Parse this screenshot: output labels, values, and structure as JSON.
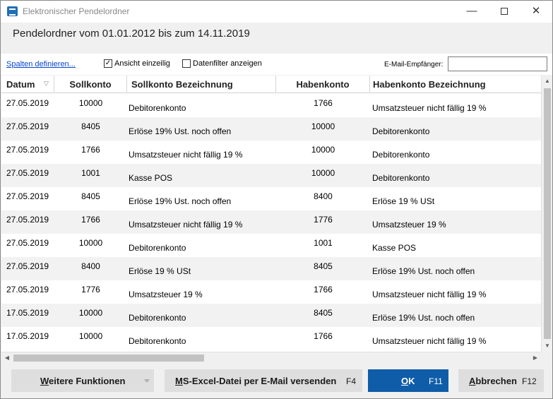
{
  "window": {
    "title": "Elektronischer Pendelordner",
    "controls": {
      "minimize": "—",
      "close": "✕"
    }
  },
  "header": {
    "title": "Pendelordner vom 01.01.2012 bis zum 14.11.2019"
  },
  "toolbar": {
    "columns_link": "Spalten definieren...",
    "single_line_label": "Ansicht einzeilig",
    "single_line_checked": true,
    "filter_label": "Datenfilter anzeigen",
    "filter_checked": false,
    "email_label": "E-Mail-Empfänger:",
    "email_value": ""
  },
  "grid": {
    "columns": {
      "datum": "Datum",
      "soll": "Sollkonto",
      "sollbez": "Sollkonto Bezeichnung",
      "haben": "Habenkonto",
      "habenbez": "Habenkonto Bezeichnung"
    },
    "sort_indicator": "▽",
    "rows": [
      {
        "datum": "27.05.2019",
        "soll": "10000",
        "sollbez": "Debitorenkonto",
        "haben": "1766",
        "habenbez": "Umsatzsteuer nicht fällig 19 %"
      },
      {
        "datum": "27.05.2019",
        "soll": "8405",
        "sollbez": "Erlöse 19% Ust. noch offen",
        "haben": "10000",
        "habenbez": "Debitorenkonto"
      },
      {
        "datum": "27.05.2019",
        "soll": "1766",
        "sollbez": "Umsatzsteuer nicht fällig 19 %",
        "haben": "10000",
        "habenbez": "Debitorenkonto"
      },
      {
        "datum": "27.05.2019",
        "soll": "1001",
        "sollbez": "Kasse POS",
        "haben": "10000",
        "habenbez": "Debitorenkonto"
      },
      {
        "datum": "27.05.2019",
        "soll": "8405",
        "sollbez": "Erlöse 19% Ust. noch offen",
        "haben": "8400",
        "habenbez": "Erlöse 19 % USt"
      },
      {
        "datum": "27.05.2019",
        "soll": "1766",
        "sollbez": "Umsatzsteuer nicht fällig 19 %",
        "haben": "1776",
        "habenbez": "Umsatzsteuer 19 %"
      },
      {
        "datum": "27.05.2019",
        "soll": "10000",
        "sollbez": "Debitorenkonto",
        "haben": "1001",
        "habenbez": "Kasse POS"
      },
      {
        "datum": "27.05.2019",
        "soll": "8400",
        "sollbez": "Erlöse 19 % USt",
        "haben": "8405",
        "habenbez": "Erlöse 19% Ust. noch offen"
      },
      {
        "datum": "27.05.2019",
        "soll": "1776",
        "sollbez": "Umsatzsteuer 19 %",
        "haben": "1766",
        "habenbez": "Umsatzsteuer nicht fällig 19 %"
      },
      {
        "datum": "17.05.2019",
        "soll": "10000",
        "sollbez": "Debitorenkonto",
        "haben": "8405",
        "habenbez": "Erlöse 19% Ust. noch offen"
      },
      {
        "datum": "17.05.2019",
        "soll": "10000",
        "sollbez": "Debitorenkonto",
        "haben": "1766",
        "habenbez": "Umsatzsteuer nicht fällig 19 %"
      }
    ]
  },
  "footer": {
    "weitere": {
      "accel": "W",
      "rest": "eitere Funktionen"
    },
    "excel": {
      "accel": "M",
      "rest": "S-Excel-Datei per E-Mail versenden",
      "key": "F4"
    },
    "ok": {
      "accel": "O",
      "rest": "K",
      "key": "F11"
    },
    "abbrechen": {
      "accel": "A",
      "rest": "bbrechen",
      "key": "F12"
    }
  },
  "colors": {
    "accent": "#0f5ca8",
    "link": "#0645cc",
    "alt_row": "#f2f2f2"
  }
}
